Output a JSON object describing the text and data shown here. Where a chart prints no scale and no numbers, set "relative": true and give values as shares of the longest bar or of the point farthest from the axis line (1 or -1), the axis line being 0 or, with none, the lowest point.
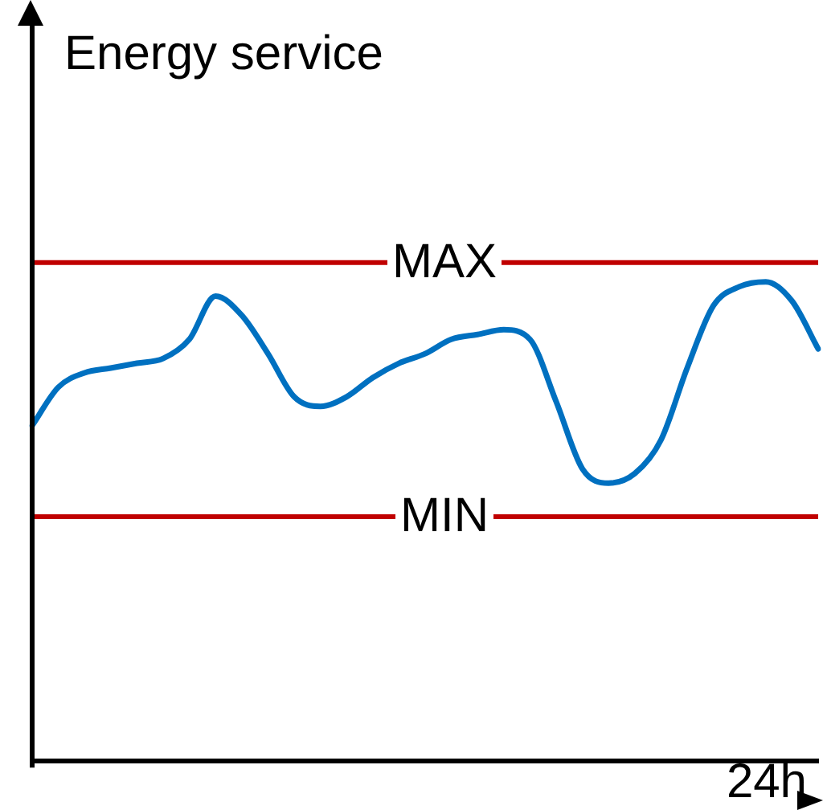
{
  "chart_data": {
    "type": "line",
    "relative": true,
    "ylabel": "Energy service",
    "xlabel": "24h",
    "legend": false,
    "grid": false,
    "marker": "none",
    "line_style": "solid",
    "categories": [
      null,
      null,
      null,
      null,
      null,
      null,
      null,
      null,
      null,
      null,
      null,
      null,
      null,
      null,
      null,
      null,
      null,
      null,
      null,
      null,
      null,
      null,
      null,
      null,
      null,
      null,
      null,
      null,
      null,
      null,
      null
    ],
    "series": [
      {
        "color": "#0070c0",
        "values": [
          0.7,
          0.78,
          0.81,
          0.82,
          0.83,
          0.84,
          0.88,
          0.97,
          0.93,
          0.85,
          0.76,
          0.74,
          0.76,
          0.8,
          0.83,
          0.85,
          0.88,
          0.89,
          0.9,
          0.88,
          0.75,
          0.61,
          0.58,
          0.6,
          0.67,
          0.82,
          0.95,
          0.99,
          1,
          0.96,
          0.86
        ]
      }
    ],
    "ref_lines": [
      {
        "axis": "y",
        "value": 1.04,
        "label": "MAX",
        "color": "#c00000"
      },
      {
        "axis": "y",
        "value": 0.51,
        "label": "MIN",
        "color": "#c00000"
      }
    ]
  }
}
